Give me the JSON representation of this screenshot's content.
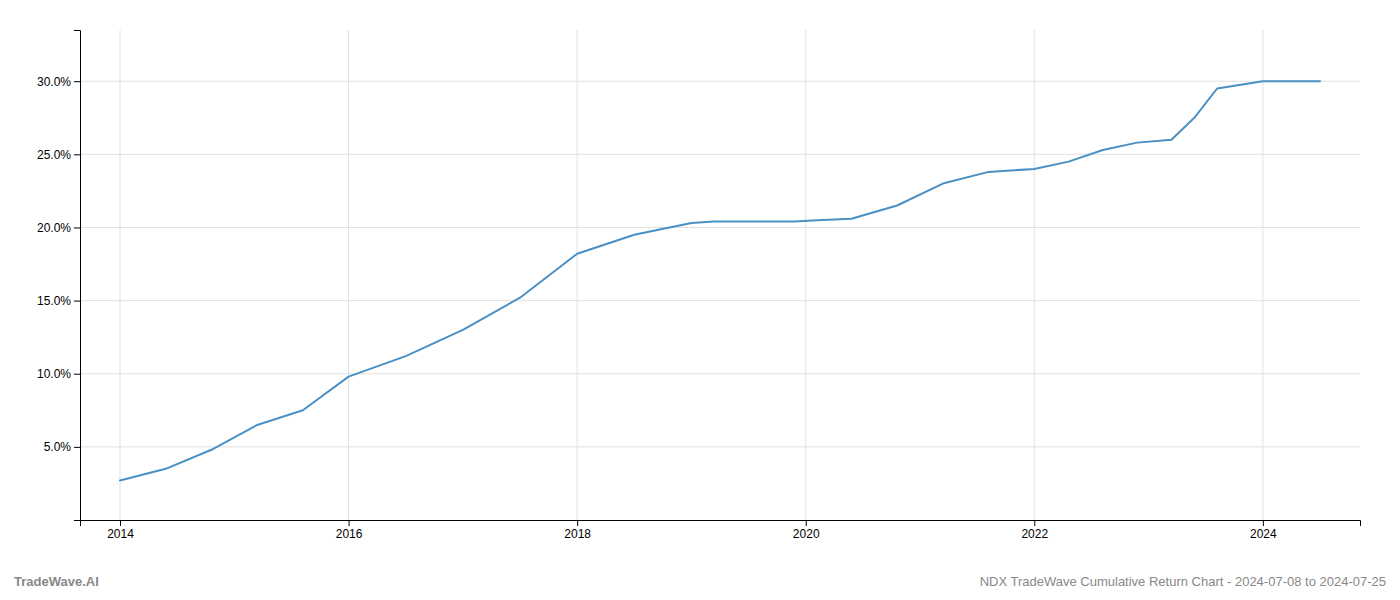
{
  "chart_data": {
    "type": "line",
    "annotations": [
      "TradeWave.AI",
      "NDX TradeWave Cumulative Return Chart - 2024-07-08 to 2024-07-25"
    ],
    "x": [
      2014.0,
      2014.4,
      2014.8,
      2015.2,
      2015.6,
      2016.0,
      2016.5,
      2017.0,
      2017.5,
      2018.0,
      2018.5,
      2019.0,
      2019.2,
      2019.5,
      2019.7,
      2019.9,
      2020.1,
      2020.4,
      2020.8,
      2021.2,
      2021.6,
      2022.0,
      2022.3,
      2022.6,
      2022.9,
      2023.2,
      2023.4,
      2023.6,
      2024.0,
      2024.5
    ],
    "values": [
      2.7,
      3.5,
      4.8,
      6.5,
      7.5,
      9.8,
      11.2,
      13.0,
      15.2,
      18.2,
      19.5,
      20.3,
      20.4,
      20.4,
      20.4,
      20.4,
      20.5,
      20.6,
      21.5,
      23.0,
      23.8,
      24.0,
      24.5,
      25.3,
      25.8,
      26.0,
      27.5,
      29.5,
      30.0,
      30.0
    ],
    "color": "#4a90c4",
    "xlim": [
      2013.65,
      2024.85
    ],
    "ylim": [
      0,
      33.5
    ],
    "xticks": [
      2014,
      2016,
      2018,
      2020,
      2022,
      2024
    ],
    "yticks": [
      {
        "value": 5.0,
        "label": "5.0%"
      },
      {
        "value": 10.0,
        "label": "10.0%"
      },
      {
        "value": 15.0,
        "label": "15.0%"
      },
      {
        "value": 20.0,
        "label": "20.0%"
      },
      {
        "value": 25.0,
        "label": "25.0%"
      },
      {
        "value": 30.0,
        "label": "30.0%"
      }
    ],
    "grid": true
  }
}
